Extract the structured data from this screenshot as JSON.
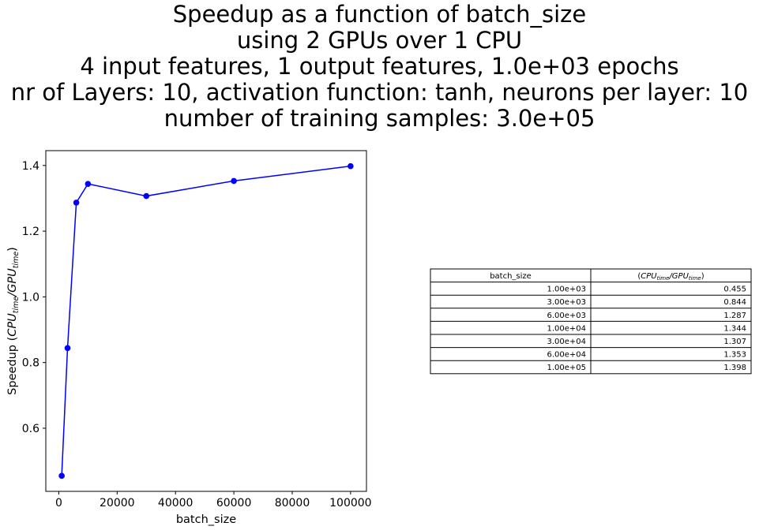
{
  "title_lines": [
    "Speedup as a function of batch_size",
    "using 2 GPUs over 1 CPU",
    "4 input features, 1 output features, 1.0e+03 epochs",
    "nr of Layers: 10, activation function: tanh, neurons per layer: 10",
    "number of training samples: 3.0e+05"
  ],
  "chart_data": {
    "type": "line",
    "title": "Speedup as a function of batch_size using 2 GPUs over 1 CPU",
    "xlabel": "batch_size",
    "ylabel": "Speedup (CPU_time/GPU_time)",
    "x": [
      1000,
      3000,
      6000,
      10000,
      30000,
      60000,
      100000
    ],
    "series": [
      {
        "values": [
          0.455,
          0.844,
          1.287,
          1.344,
          1.307,
          1.353,
          1.398
        ],
        "color": "#0000ff",
        "marker": "circle"
      }
    ],
    "xlim": [
      -4450,
      105450
    ],
    "ylim": [
      0.4078,
      1.4452
    ],
    "xticks": [
      0,
      20000,
      40000,
      60000,
      80000,
      100000
    ],
    "xtick_labels": [
      "0",
      "20000",
      "40000",
      "60000",
      "80000",
      "100000"
    ],
    "yticks": [
      0.6,
      0.8,
      1.0,
      1.2,
      1.4
    ],
    "ytick_labels": [
      "0.6",
      "0.8",
      "1.0",
      "1.2",
      "1.4"
    ],
    "grid": false
  },
  "table": {
    "headers": [
      "batch_size",
      "(CPU_time/GPU_time)"
    ],
    "rows": [
      [
        "1.00e+03",
        "0.455"
      ],
      [
        "3.00e+03",
        "0.844"
      ],
      [
        "6.00e+03",
        "1.287"
      ],
      [
        "1.00e+04",
        "1.344"
      ],
      [
        "3.00e+04",
        "1.307"
      ],
      [
        "6.00e+04",
        "1.353"
      ],
      [
        "1.00e+05",
        "1.398"
      ]
    ]
  }
}
